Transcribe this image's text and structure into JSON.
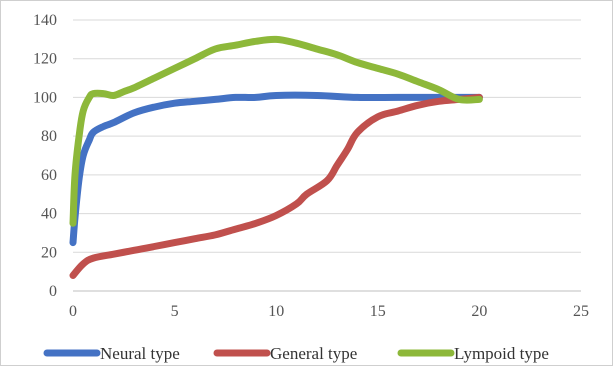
{
  "chart_data": {
    "type": "line",
    "title": "",
    "xlabel": "",
    "ylabel": "",
    "xlim": [
      0,
      25
    ],
    "ylim": [
      0,
      140
    ],
    "xticks": [
      0,
      5,
      10,
      15,
      20,
      25
    ],
    "yticks": [
      0,
      20,
      40,
      60,
      80,
      100,
      120,
      140
    ],
    "grid": "horizontal",
    "legend_position": "bottom",
    "series": [
      {
        "name": "Neural type",
        "color": "#4472C4",
        "x": [
          0,
          0.1,
          0.3,
          0.5,
          0.8,
          1,
          1.5,
          2,
          3,
          4,
          5,
          6,
          7,
          8,
          9,
          10,
          12,
          14,
          16,
          18,
          19,
          20
        ],
        "y": [
          25,
          38,
          58,
          70,
          78,
          82,
          85,
          87,
          92,
          95,
          97,
          98,
          99,
          100,
          100,
          101,
          101,
          100,
          100,
          100,
          100,
          100
        ]
      },
      {
        "name": "General type",
        "color": "#C0504D",
        "x": [
          0,
          0.5,
          1,
          2,
          3,
          4,
          5,
          6,
          7,
          8,
          9,
          10,
          11,
          11.5,
          12.5,
          13,
          13.5,
          14,
          15,
          16,
          17,
          18,
          19,
          20
        ],
        "y": [
          8,
          14,
          17,
          19,
          21,
          23,
          25,
          27,
          29,
          32,
          35,
          39,
          45,
          50,
          57,
          65,
          73,
          82,
          90,
          93,
          96,
          98,
          99,
          100
        ]
      },
      {
        "name": "Lympoid type",
        "color": "#8DB83A",
        "x": [
          0,
          0.1,
          0.3,
          0.5,
          0.8,
          1,
          1.5,
          2,
          2.5,
          3,
          4,
          5,
          6,
          7,
          8,
          9,
          10,
          11,
          12,
          13,
          14,
          15,
          16,
          17,
          18,
          19,
          20
        ],
        "y": [
          35,
          60,
          80,
          93,
          100,
          102,
          102,
          101,
          103,
          105,
          110,
          115,
          120,
          125,
          127,
          129,
          130,
          128,
          125,
          122,
          118,
          115,
          112,
          108,
          104,
          99,
          99
        ]
      }
    ]
  }
}
